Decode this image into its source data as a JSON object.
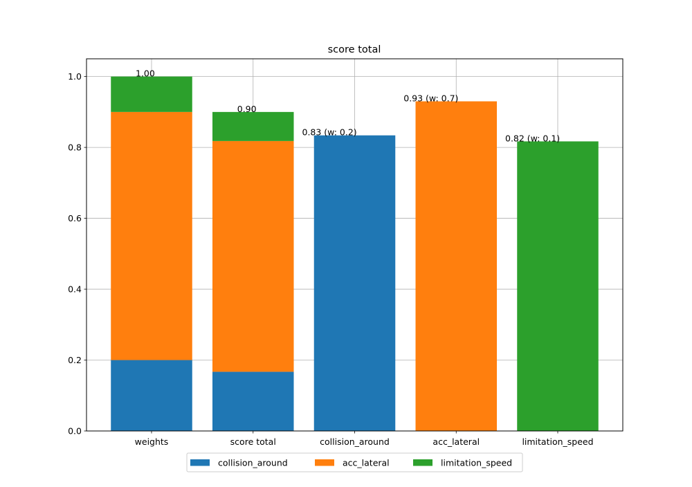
{
  "chart_data": {
    "type": "bar",
    "stacked": true,
    "title": "score total",
    "xlabel": "",
    "ylabel": "",
    "categories": [
      "weights",
      "score total",
      "collision_around",
      "acc_lateral",
      "limitation_speed"
    ],
    "ylim": [
      0,
      1.05
    ],
    "yticks": [
      "0.0",
      "0.2",
      "0.4",
      "0.6",
      "0.8",
      "1.0"
    ],
    "grid": true,
    "legend_placement": "bottom-center",
    "series": [
      {
        "name": "collision_around",
        "color": "#1f77b4",
        "values": [
          0.2,
          0.167,
          0.834,
          0,
          0
        ]
      },
      {
        "name": "acc_lateral",
        "color": "#ff7f0e",
        "values": [
          0.7,
          0.651,
          0,
          0.93,
          0
        ]
      },
      {
        "name": "limitation_speed",
        "color": "#2ca02c",
        "values": [
          0.1,
          0.082,
          0,
          0,
          0.817
        ]
      }
    ],
    "annotations": [
      "1.00",
      "0.90",
      "0.83 (w: 0.2)",
      "0.93 (w: 0.7)",
      "0.82 (w: 0.1)"
    ]
  }
}
